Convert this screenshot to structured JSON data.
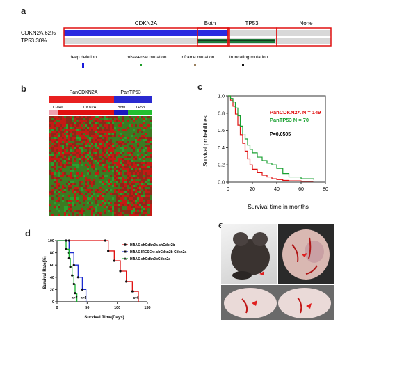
{
  "panel_a": {
    "label": "a",
    "groups": [
      "CDKN2A",
      "Both",
      "TP53",
      "None"
    ],
    "rows": [
      "CDKN2A 62%",
      "TP53 30%"
    ],
    "legend": [
      {
        "name": "deep deletion",
        "color": "#1a1adb"
      },
      {
        "name": "misssense mutation",
        "color": "#1e9e2a"
      },
      {
        "name": "inframe mutation",
        "color": "#9a8060"
      },
      {
        "name": "truncating mutation",
        "color": "#111111"
      }
    ]
  },
  "panel_b": {
    "label": "b",
    "top_groups": [
      "PanCDKN2A",
      "PanTP53"
    ],
    "sub_groups": [
      "C-like",
      "CDKN2A",
      "Both",
      "TP53"
    ]
  },
  "panel_c": {
    "label": "c",
    "chart_data": {
      "type": "line",
      "xlabel": "Survival time in months",
      "ylabel": "Survival probabilities",
      "xlim": [
        0,
        80
      ],
      "ylim": [
        0,
        1.0
      ],
      "x_ticks": [
        "0",
        "20",
        "40",
        "60",
        "80"
      ],
      "y_ticks": [
        "0.0",
        "0.2",
        "0.4",
        "0.6",
        "0.8",
        "1.0"
      ],
      "series": [
        {
          "name": "PanCDKN2A  N = 149",
          "color": "#e01010",
          "points": [
            [
              0,
              1.0
            ],
            [
              2,
              0.95
            ],
            [
              4,
              0.88
            ],
            [
              6,
              0.79
            ],
            [
              8,
              0.66
            ],
            [
              10,
              0.55
            ],
            [
              12,
              0.45
            ],
            [
              14,
              0.36
            ],
            [
              16,
              0.27
            ],
            [
              18,
              0.2
            ],
            [
              20,
              0.15
            ],
            [
              24,
              0.11
            ],
            [
              28,
              0.08
            ],
            [
              32,
              0.06
            ],
            [
              36,
              0.04
            ],
            [
              40,
              0.03
            ],
            [
              45,
              0.02
            ],
            [
              50,
              0.015
            ],
            [
              60,
              0.01
            ],
            [
              70,
              0.01
            ]
          ]
        },
        {
          "name": "PanTP53  N = 70",
          "color": "#18a030",
          "points": [
            [
              0,
              1.0
            ],
            [
              2,
              0.97
            ],
            [
              4,
              0.93
            ],
            [
              6,
              0.86
            ],
            [
              8,
              0.77
            ],
            [
              10,
              0.65
            ],
            [
              12,
              0.56
            ],
            [
              14,
              0.5
            ],
            [
              16,
              0.43
            ],
            [
              18,
              0.38
            ],
            [
              20,
              0.34
            ],
            [
              24,
              0.29
            ],
            [
              28,
              0.25
            ],
            [
              32,
              0.22
            ],
            [
              36,
              0.2
            ],
            [
              40,
              0.16
            ],
            [
              45,
              0.1
            ],
            [
              50,
              0.06
            ],
            [
              60,
              0.04
            ],
            [
              70,
              0.03
            ]
          ]
        }
      ],
      "annotation": "P=0.0505"
    }
  },
  "panel_d": {
    "label": "d",
    "chart_data": {
      "type": "line",
      "xlabel": "Survival Time(Days)",
      "ylabel": "Survival Rate(%)",
      "xlim": [
        0,
        150
      ],
      "ylim": [
        0,
        100
      ],
      "x_ticks": [
        "0",
        "50",
        "100",
        "150"
      ],
      "y_ticks": [
        "0",
        "20",
        "40",
        "60",
        "80",
        "100"
      ],
      "series": [
        {
          "name": "HRAS-shCdkn2a-shCdcr2b",
          "color": "#e01010",
          "n_label": "n=6",
          "points": [
            [
              0,
              100
            ],
            [
              80,
              100
            ],
            [
              85,
              83
            ],
            [
              95,
              67
            ],
            [
              105,
              50
            ],
            [
              115,
              33
            ],
            [
              125,
              17
            ],
            [
              135,
              0
            ]
          ]
        },
        {
          "name": "HRAS-IRESCre-shCdkn2b Cdkn2a",
          "color": "#1a2ad0",
          "n_label": "n=5",
          "points": [
            [
              0,
              100
            ],
            [
              20,
              100
            ],
            [
              20,
              80
            ],
            [
              28,
              60
            ],
            [
              35,
              40
            ],
            [
              42,
              20
            ],
            [
              48,
              0
            ]
          ]
        },
        {
          "name": "HRAS-shCdkn2bCdkn2a",
          "color": "#18b030",
          "n_label": "n=7",
          "points": [
            [
              0,
              100
            ],
            [
              15,
              100
            ],
            [
              15,
              86
            ],
            [
              20,
              71
            ],
            [
              22,
              57
            ],
            [
              25,
              43
            ],
            [
              28,
              29
            ],
            [
              30,
              14
            ],
            [
              33,
              0
            ]
          ]
        }
      ]
    }
  },
  "panel_e": {
    "label": "e"
  }
}
